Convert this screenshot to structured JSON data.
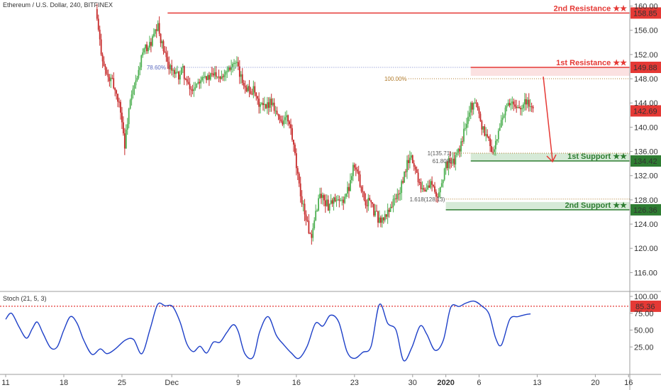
{
  "title": "Ethereum / U.S. Dollar, 240, BITFINEX",
  "colors": {
    "up": "#4caf50",
    "down": "#c62828",
    "resistance": "#e53935",
    "support": "#2e7d32",
    "stoch": "#1e40c8",
    "fib": "#b07a2a"
  },
  "chart_data": {
    "type": "candlestick",
    "y_axis": {
      "range": [
        113,
        161
      ],
      "ticks": [
        "160.00",
        "156.00",
        "152.00",
        "148.00",
        "144.00",
        "140.00",
        "136.00",
        "132.00",
        "128.00",
        "124.00",
        "120.00",
        "116.00"
      ]
    },
    "x_axis": {
      "range": [
        0,
        62
      ],
      "ticks": [
        {
          "day": 0,
          "label": "11"
        },
        {
          "day": 7,
          "label": "18"
        },
        {
          "day": 14,
          "label": "25"
        },
        {
          "day": 20,
          "label": "Dec"
        },
        {
          "day": 28,
          "label": "9"
        },
        {
          "day": 35,
          "label": "16"
        },
        {
          "day": 42,
          "label": "23"
        },
        {
          "day": 49,
          "label": "30"
        },
        {
          "day": 53,
          "label": "2020"
        },
        {
          "day": 57,
          "label": "6"
        },
        {
          "day": 64,
          "label": "13"
        },
        {
          "day": 71,
          "label": "20"
        },
        {
          "day": 75,
          "label": "16"
        }
      ]
    },
    "price_path": [
      [
        11,
        159.5
      ],
      [
        11.5,
        154
      ],
      [
        12,
        150
      ],
      [
        12.5,
        148
      ],
      [
        13,
        147.5
      ],
      [
        13.5,
        145.5
      ],
      [
        14,
        143
      ],
      [
        14.5,
        137
      ],
      [
        15,
        143
      ],
      [
        15.5,
        146
      ],
      [
        16,
        148
      ],
      [
        16.5,
        151.5
      ],
      [
        17,
        153
      ],
      [
        17.5,
        153.5
      ],
      [
        18,
        155
      ],
      [
        18.5,
        156.5
      ],
      [
        19,
        153.5
      ],
      [
        19.5,
        151
      ],
      [
        20,
        150
      ],
      [
        20.5,
        148.5
      ],
      [
        21,
        148.5
      ],
      [
        21.5,
        149.5
      ],
      [
        22,
        147
      ],
      [
        22.5,
        146
      ],
      [
        23,
        147
      ],
      [
        23.5,
        148
      ],
      [
        24,
        149
      ],
      [
        24.5,
        148
      ],
      [
        25,
        148.5
      ],
      [
        25.5,
        149
      ],
      [
        26,
        148.5
      ],
      [
        26.5,
        149
      ],
      [
        27,
        150
      ],
      [
        27.5,
        150.5
      ],
      [
        28,
        150
      ],
      [
        28.5,
        148
      ],
      [
        29,
        147
      ],
      [
        29.5,
        146
      ],
      [
        30,
        146
      ],
      [
        30.5,
        144
      ],
      [
        31,
        143.5
      ],
      [
        31.5,
        143
      ],
      [
        32,
        144.5
      ],
      [
        32.5,
        143.5
      ],
      [
        33,
        141.5
      ],
      [
        33.5,
        141
      ],
      [
        34,
        141.5
      ],
      [
        34.5,
        139.5
      ],
      [
        35,
        135
      ],
      [
        35.5,
        130
      ],
      [
        36,
        127
      ],
      [
        36.5,
        124
      ],
      [
        37,
        121
      ],
      [
        37.5,
        126
      ],
      [
        38,
        129
      ],
      [
        38.5,
        128
      ],
      [
        39,
        127
      ],
      [
        39.5,
        128
      ],
      [
        40,
        127.5
      ],
      [
        40.5,
        127.5
      ],
      [
        41,
        128.5
      ],
      [
        41.5,
        130
      ],
      [
        42,
        134
      ],
      [
        42.5,
        132.5
      ],
      [
        43,
        130
      ],
      [
        43.5,
        127.5
      ],
      [
        44,
        128
      ],
      [
        44.5,
        126
      ],
      [
        45,
        125
      ],
      [
        45.5,
        124.5
      ],
      [
        46,
        125.5
      ],
      [
        46.5,
        127
      ],
      [
        47,
        128
      ],
      [
        47.5,
        129
      ],
      [
        48,
        131
      ],
      [
        48.5,
        134
      ],
      [
        49,
        135
      ],
      [
        49.5,
        133
      ],
      [
        50,
        131
      ],
      [
        50.5,
        129.5
      ],
      [
        51,
        130
      ],
      [
        51.5,
        131
      ],
      [
        52,
        128
      ],
      [
        52.5,
        130
      ],
      [
        53,
        133
      ],
      [
        53.5,
        134.5
      ],
      [
        54,
        134
      ],
      [
        54.5,
        135.5
      ],
      [
        55,
        137
      ],
      [
        55.5,
        140.5
      ],
      [
        56,
        143
      ],
      [
        56.5,
        144
      ],
      [
        57,
        143.5
      ],
      [
        57.5,
        140
      ],
      [
        58,
        139
      ],
      [
        58.5,
        137
      ],
      [
        59,
        136
      ],
      [
        59.5,
        139
      ],
      [
        60,
        142
      ],
      [
        60.5,
        143
      ],
      [
        61,
        144
      ],
      [
        61.5,
        143
      ],
      [
        62,
        143.5
      ],
      [
        62.5,
        144
      ],
      [
        63,
        144.5
      ],
      [
        63.5,
        142.69
      ]
    ],
    "levels": [
      {
        "name": "2nd Resistance ★★",
        "price": 158.85,
        "label": "158.85",
        "kind": "resistance",
        "x_start": 19.5
      },
      {
        "name": "1st Resistance ★★",
        "price": 149.88,
        "label": "149.88",
        "kind": "resistance",
        "x_start": 56
      },
      {
        "name": "1st Support ★★",
        "price": 134.42,
        "label": "134.42",
        "kind": "support",
        "x_start": 56
      },
      {
        "name": "2nd Support ★★",
        "price": 126.36,
        "label": "126.36",
        "kind": "support",
        "x_start": 53
      }
    ],
    "current_price": {
      "label": "142.69",
      "price": 142.69
    },
    "fib_annotations": [
      {
        "text": "78.60%",
        "price": 149.88
      },
      {
        "text": "100.00%",
        "price": 148.0
      },
      {
        "text": "1(135.71)",
        "price": 135.71
      },
      {
        "text": "61.80%",
        "price": 134.42
      },
      {
        "text": "1.618(128.13)",
        "price": 128.13
      }
    ],
    "oscillator": {
      "name": "Stoch (21, 5, 3)",
      "ticks": [
        "100.00",
        "75.00",
        "50.00",
        "25.00"
      ],
      "level": {
        "label": "85.36",
        "value": 85.36
      },
      "values": [
        [
          0,
          66
        ],
        [
          0.7,
          75
        ],
        [
          1.6,
          55
        ],
        [
          2.5,
          38
        ],
        [
          3.2,
          52
        ],
        [
          3.8,
          62
        ],
        [
          4.5,
          45
        ],
        [
          5.4,
          24
        ],
        [
          6.2,
          25
        ],
        [
          7,
          50
        ],
        [
          7.8,
          70
        ],
        [
          8.6,
          60
        ],
        [
          9.4,
          35
        ],
        [
          10.4,
          14
        ],
        [
          11.4,
          22
        ],
        [
          12.2,
          15
        ],
        [
          13.2,
          22
        ],
        [
          14.4,
          35
        ],
        [
          15.4,
          36
        ],
        [
          16.4,
          15
        ],
        [
          17.4,
          52
        ],
        [
          18.3,
          88
        ],
        [
          19.2,
          86
        ],
        [
          20.1,
          85
        ],
        [
          21,
          62
        ],
        [
          21.8,
          30
        ],
        [
          22.6,
          18
        ],
        [
          23.4,
          26
        ],
        [
          24.2,
          16
        ],
        [
          25,
          32
        ],
        [
          25.8,
          32
        ],
        [
          26.6,
          46
        ],
        [
          27.4,
          58
        ],
        [
          28,
          48
        ],
        [
          28.8,
          15
        ],
        [
          29.8,
          10
        ],
        [
          30.6,
          48
        ],
        [
          31.6,
          70
        ],
        [
          32.6,
          42
        ],
        [
          33.5,
          28
        ],
        [
          34.4,
          16
        ],
        [
          35.3,
          8
        ],
        [
          36.3,
          26
        ],
        [
          37.3,
          60
        ],
        [
          38.2,
          56
        ],
        [
          39.1,
          72
        ],
        [
          40.1,
          62
        ],
        [
          41.1,
          18
        ],
        [
          42,
          8
        ],
        [
          43,
          17
        ],
        [
          44,
          26
        ],
        [
          45,
          88
        ],
        [
          46,
          60
        ],
        [
          47,
          50
        ],
        [
          47.9,
          5
        ],
        [
          48.9,
          24
        ],
        [
          49.9,
          56
        ],
        [
          50.7,
          44
        ],
        [
          51.7,
          20
        ],
        [
          52.7,
          35
        ],
        [
          53.6,
          84
        ],
        [
          54.6,
          85
        ],
        [
          55.4,
          90
        ],
        [
          56.4,
          93
        ],
        [
          57.3,
          86
        ],
        [
          58.2,
          74
        ],
        [
          59,
          38
        ],
        [
          59.7,
          28
        ],
        [
          60.7,
          66
        ],
        [
          61.7,
          70
        ],
        [
          62.6,
          73
        ],
        [
          63.2,
          74
        ]
      ]
    }
  }
}
